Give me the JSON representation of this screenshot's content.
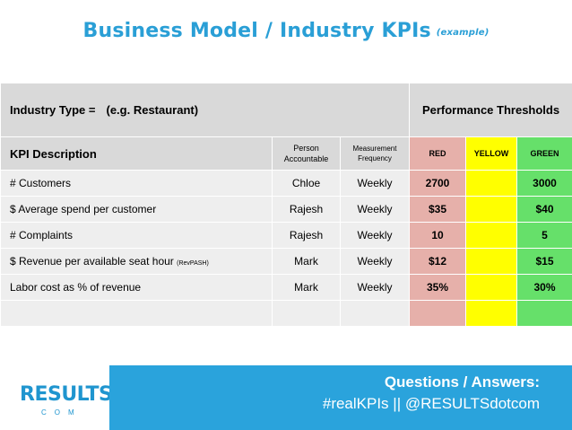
{
  "title": "Business Model / Industry KPIs",
  "title_sub": "(example)",
  "industry_label": "Industry Type =",
  "industry_value": "(e.g. Restaurant)",
  "thresholds_header": "Performance Thresholds",
  "columns": {
    "kpi": "KPI Description",
    "person_line1": "Person",
    "person_line2": "Accountable",
    "freq_line1": "Measurement",
    "freq_line2": "Frequency",
    "red": "RED",
    "yellow": "YELLOW",
    "green": "GREEN"
  },
  "rows": [
    {
      "kpi": "# Customers",
      "note": "",
      "person": "Chloe",
      "freq": "Weekly",
      "red": "2700",
      "yellow": "",
      "green": "3000"
    },
    {
      "kpi": "$ Average spend per customer",
      "note": "",
      "person": "Rajesh",
      "freq": "Weekly",
      "red": "$35",
      "yellow": "",
      "green": "$40"
    },
    {
      "kpi": "# Complaints",
      "note": "",
      "person": "Rajesh",
      "freq": "Weekly",
      "red": "10",
      "yellow": "",
      "green": "5"
    },
    {
      "kpi": "$ Revenue per available seat hour",
      "note": "(RevPASH)",
      "person": "Mark",
      "freq": "Weekly",
      "red": "$12",
      "yellow": "",
      "green": "$15"
    },
    {
      "kpi": "Labor cost as % of revenue",
      "note": "",
      "person": "Mark",
      "freq": "Weekly",
      "red": "35%",
      "yellow": "",
      "green": "30%"
    }
  ],
  "colors": {
    "title": "#2a9fd6",
    "red": "#e6b0aa",
    "yellow": "#ffff00",
    "green": "#66e06a",
    "banner": "#2aa3dc"
  },
  "logo": {
    "main": "RESULTS",
    "sub": "COM"
  },
  "banner": {
    "line1": "Questions / Answers:",
    "line2": "#realKPIs || @RESULTSdotcom"
  }
}
